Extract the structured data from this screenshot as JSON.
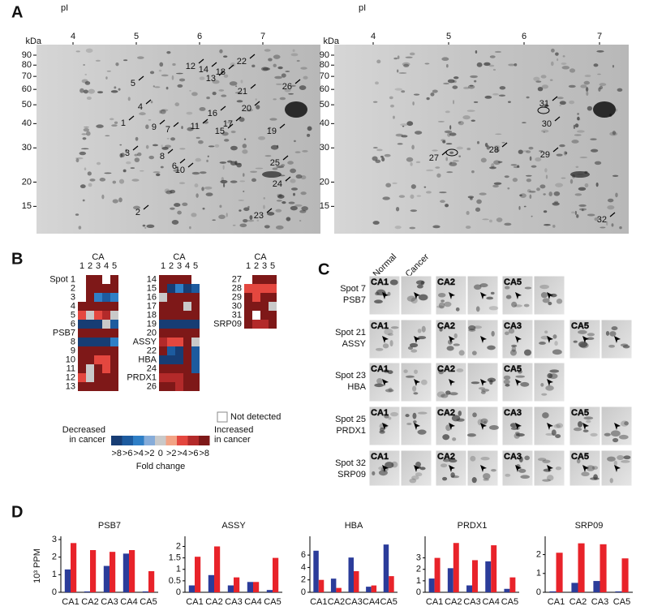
{
  "panels": {
    "A": {
      "letter": "A",
      "pi_label": "pI",
      "kda_label": "kDa",
      "pi_ticks": [
        4,
        5,
        6,
        7
      ],
      "kda_ticks": [
        90,
        80,
        70,
        60,
        50,
        40,
        30,
        20,
        15
      ],
      "left_spots": [
        "1",
        "2",
        "3",
        "4",
        "5",
        "6",
        "7",
        "8",
        "9",
        "10",
        "11",
        "12",
        "13",
        "14",
        "15",
        "16",
        "17",
        "18",
        "19",
        "20",
        "21",
        "22",
        "23",
        "24",
        "25",
        "26"
      ],
      "right_spots": [
        "27",
        "28",
        "29",
        "30",
        "31",
        "32"
      ]
    },
    "B": {
      "letter": "B",
      "column_header": "CA",
      "groups": [
        {
          "columns": [
            "1",
            "2",
            "3",
            "4",
            "5"
          ],
          "rows": [
            "Spot 1",
            "2",
            "3",
            "4",
            "5",
            "6",
            "PSB7",
            "8",
            "9",
            "10",
            "11",
            "12",
            "13"
          ],
          "cells": [
            [
              null,
              8,
              8,
              null,
              8
            ],
            [
              null,
              8,
              8,
              8,
              8
            ],
            [
              null,
              8,
              2,
              1,
              2
            ],
            [
              8,
              8,
              8,
              8,
              8
            ],
            [
              6,
              4,
              6,
              7,
              4
            ],
            [
              0,
              0,
              0,
              4,
              1
            ],
            [
              8,
              8,
              8,
              8,
              8
            ],
            [
              0,
              0,
              0,
              0,
              2
            ],
            [
              8,
              8,
              8,
              8,
              8
            ],
            [
              8,
              8,
              6,
              6,
              8
            ],
            [
              8,
              4,
              8,
              6,
              8
            ],
            [
              6,
              4,
              8,
              8,
              8
            ],
            [
              8,
              8,
              8,
              8,
              8
            ]
          ]
        },
        {
          "columns": [
            "1",
            "2",
            "3",
            "4",
            "5"
          ],
          "rows": [
            "14",
            "15",
            "16",
            "17",
            "18",
            "19",
            "20",
            "ASSY",
            "22",
            "HBA",
            "24",
            "PRDX1",
            "26"
          ],
          "cells": [
            [
              8,
              8,
              8,
              8,
              null
            ],
            [
              8,
              0,
              2,
              0,
              1
            ],
            [
              4,
              8,
              8,
              8,
              8
            ],
            [
              8,
              8,
              8,
              4,
              8
            ],
            [
              8,
              8,
              8,
              8,
              8
            ],
            [
              0,
              0,
              0,
              0,
              0
            ],
            [
              8,
              8,
              8,
              8,
              8
            ],
            [
              7,
              6,
              6,
              8,
              4
            ],
            [
              8,
              1,
              0,
              8,
              1
            ],
            [
              0,
              0,
              0,
              8,
              1
            ],
            [
              8,
              8,
              8,
              8,
              1
            ],
            [
              7,
              7,
              7,
              8,
              8
            ],
            [
              8,
              8,
              7,
              8,
              8
            ]
          ]
        },
        {
          "columns": [
            "1",
            "2",
            "3",
            "5"
          ],
          "rows": [
            "27",
            "28",
            "29",
            "30",
            "31",
            "SRP09"
          ],
          "cells": [
            [
              null,
              8,
              8,
              8
            ],
            [
              6,
              6,
              6,
              6
            ],
            [
              8,
              6,
              8,
              8
            ],
            [
              8,
              8,
              8,
              4
            ],
            [
              8,
              null,
              8,
              8
            ],
            [
              8,
              7,
              7,
              8
            ]
          ]
        }
      ],
      "not_detected": "Not detected",
      "scale_colors": [
        "#173d74",
        "#1d5b9f",
        "#2f7fc6",
        "#86acd9",
        "#c9c9c9",
        "#f2a385",
        "#e4473f",
        "#b32a2a",
        "#7e1818"
      ],
      "scale_labels": [
        ">8",
        ">6",
        ">4",
        ">2",
        "0",
        ">2",
        ">4",
        ">6",
        ">8"
      ],
      "decreased": [
        "Decreased",
        "in cancer"
      ],
      "increased": [
        "Increased",
        "in cancer"
      ],
      "scale_title": "Fold change"
    },
    "C": {
      "letter": "C",
      "normal": "Normal",
      "cancer": "Cancer",
      "rows": [
        {
          "spot": "Spot 7",
          "protein": "PSB7",
          "samples": [
            "CA1",
            "CA2",
            "CA5"
          ]
        },
        {
          "spot": "Spot 21",
          "protein": "ASSY",
          "samples": [
            "CA1",
            "CA2",
            "CA3",
            "CA5"
          ]
        },
        {
          "spot": "Spot 23",
          "protein": "HBA",
          "samples": [
            "CA1",
            "CA2",
            "CA5"
          ]
        },
        {
          "spot": "Spot 25",
          "protein": "PRDX1",
          "samples": [
            "CA1",
            "CA2",
            "CA3",
            "CA5"
          ]
        },
        {
          "spot": "Spot 32",
          "protein": "SRP09",
          "samples": [
            "CA1",
            "CA2",
            "CA3",
            "CA5"
          ]
        }
      ]
    },
    "D": {
      "letter": "D"
    }
  },
  "chart_data": [
    {
      "type": "bar",
      "title": "PSB7",
      "y_label": "10³ PPM",
      "categories": [
        "CA1",
        "CA2",
        "CA3",
        "CA4",
        "CA5"
      ],
      "series": [
        {
          "color": "#2b3c9a",
          "values": [
            1.3,
            0.05,
            1.5,
            2.2,
            0.05
          ]
        },
        {
          "color": "#e8232a",
          "values": [
            2.8,
            2.4,
            2.3,
            2.4,
            1.2
          ]
        }
      ],
      "ylim": [
        0,
        3
      ],
      "yticks": [
        0,
        1,
        2,
        3
      ]
    },
    {
      "type": "bar",
      "title": "ASSY",
      "categories": [
        "CA1",
        "CA2",
        "CA3",
        "CA4",
        "CA5"
      ],
      "series": [
        {
          "color": "#2b3c9a",
          "values": [
            0.3,
            0.75,
            0.3,
            0.45,
            0.1
          ]
        },
        {
          "color": "#e8232a",
          "values": [
            1.55,
            2.0,
            0.65,
            0.45,
            1.5
          ]
        }
      ],
      "ylim": [
        0,
        2.3
      ],
      "yticks": [
        0,
        0.5,
        1,
        1.5,
        2
      ]
    },
    {
      "type": "bar",
      "title": "HBA",
      "categories": [
        "CA1",
        "CA2",
        "CA3",
        "CA4",
        "CA5"
      ],
      "series": [
        {
          "color": "#2b3c9a",
          "values": [
            6.7,
            2.2,
            5.6,
            0.9,
            7.7
          ]
        },
        {
          "color": "#e8232a",
          "values": [
            2.0,
            0.7,
            3.4,
            1.1,
            2.6
          ]
        }
      ],
      "ylim": [
        0,
        8.5
      ],
      "yticks": [
        0,
        2,
        4,
        6
      ]
    },
    {
      "type": "bar",
      "title": "PRDX1",
      "categories": [
        "CA1",
        "CA2",
        "CA3",
        "CA4",
        "CA5"
      ],
      "series": [
        {
          "color": "#2b3c9a",
          "values": [
            1.2,
            2.1,
            0.6,
            2.7,
            0.3
          ]
        },
        {
          "color": "#e8232a",
          "values": [
            3.0,
            4.3,
            2.8,
            4.1,
            1.3
          ]
        }
      ],
      "ylim": [
        0,
        4.6
      ],
      "yticks": [
        0,
        1,
        2,
        3
      ]
    },
    {
      "type": "bar",
      "title": "SRP09",
      "categories": [
        "CA1",
        "CA2",
        "CA3",
        "CA5"
      ],
      "series": [
        {
          "color": "#2b3c9a",
          "values": [
            0.05,
            0.5,
            0.6,
            0.05
          ]
        },
        {
          "color": "#e8232a",
          "values": [
            2.1,
            2.6,
            2.55,
            1.8
          ]
        }
      ],
      "ylim": [
        0,
        2.8
      ],
      "yticks": [
        0,
        1,
        2
      ]
    }
  ]
}
